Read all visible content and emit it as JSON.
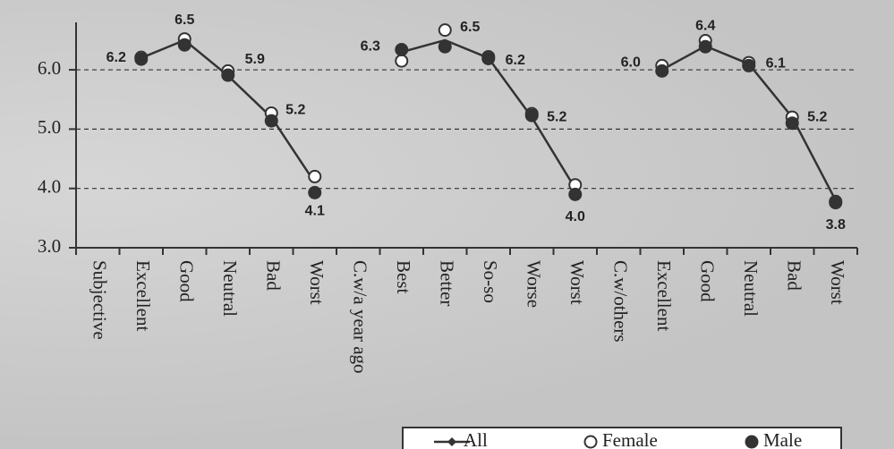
{
  "chart_data": {
    "type": "line",
    "categories": [
      "Subjective",
      "Excellent",
      "Good",
      "Neutral",
      "Bad",
      "Worst",
      "C.w/a year ago",
      "Best",
      "Better",
      "So-so",
      "Worse",
      "Worst",
      "C.w/others",
      "Excellent",
      "Good",
      "Neutral",
      "Bad",
      "Worst"
    ],
    "series": [
      {
        "name": "All",
        "color": "#333333",
        "marker": "line",
        "values": [
          null,
          6.2,
          6.5,
          5.9,
          5.2,
          4.1,
          null,
          6.3,
          6.5,
          6.2,
          5.2,
          4.0,
          null,
          6.0,
          6.4,
          6.1,
          5.2,
          3.8
        ],
        "value_labels": [
          null,
          "6.2",
          "6.5",
          "5.9",
          "5.2",
          "4.1",
          null,
          "6.3",
          "6.5",
          "6.2",
          "5.2",
          "4.0",
          null,
          "6.0",
          "6.4",
          "6.1",
          "5.2",
          "3.8"
        ]
      },
      {
        "name": "Female",
        "color": "#333333",
        "marker": "open",
        "values": [
          null,
          6.21,
          6.52,
          5.98,
          5.27,
          4.2,
          null,
          6.15,
          6.67,
          6.22,
          5.26,
          4.06,
          null,
          6.07,
          6.49,
          6.12,
          5.2,
          3.78
        ]
      },
      {
        "name": "Male",
        "color": "#333333",
        "marker": "filled",
        "values": [
          null,
          6.18,
          6.42,
          5.91,
          5.14,
          3.93,
          null,
          6.34,
          6.39,
          6.19,
          5.23,
          3.9,
          null,
          5.98,
          6.39,
          6.07,
          5.1,
          3.76
        ]
      }
    ],
    "ylim": [
      3.0,
      6.8
    ],
    "yticks": [
      {
        "value": 3,
        "label": "3.0"
      },
      {
        "value": 4,
        "label": "4.0"
      },
      {
        "value": 5,
        "label": "5.0"
      },
      {
        "value": 6,
        "label": "6.0"
      }
    ],
    "grid": true,
    "legend": "bottom-right"
  }
}
